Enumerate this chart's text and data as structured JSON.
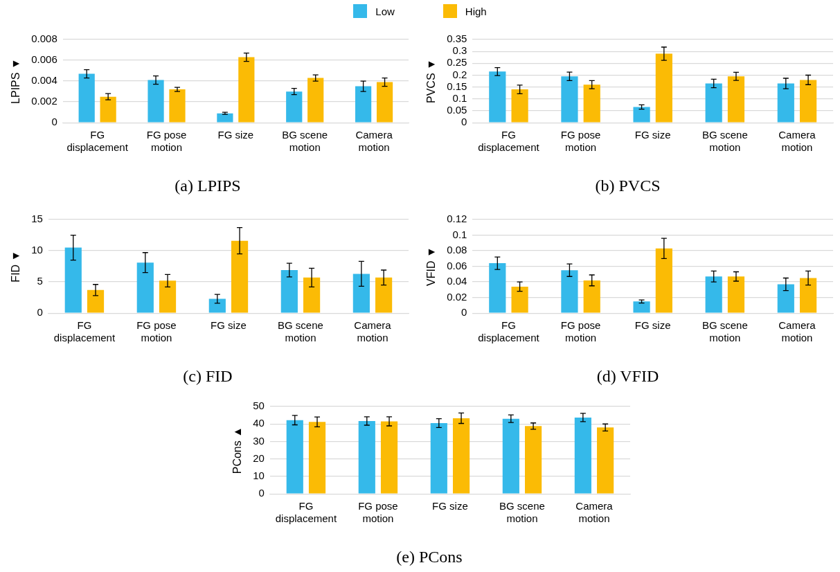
{
  "chart_data": [
    {
      "type": "bar",
      "title": "(a) LPIPS",
      "ylabel": "LPIPS ▼",
      "categories": [
        "FG displacement",
        "FG pose motion",
        "FG size",
        "BG scene motion",
        "Camera motion"
      ],
      "ylim": [
        0,
        0.008
      ],
      "yticks": [
        0,
        0.002,
        0.004,
        0.006,
        0.008
      ],
      "grid": "y",
      "legend": "top",
      "series": [
        {
          "name": "Low",
          "color": "#35b9ea",
          "values": [
            0.0047,
            0.0041,
            0.0009,
            0.003,
            0.0035
          ],
          "errors": [
            0.0004,
            0.0004,
            0.0001,
            0.0003,
            0.0005
          ]
        },
        {
          "name": "High",
          "color": "#fbbb05",
          "values": [
            0.0025,
            0.0032,
            0.0063,
            0.0043,
            0.0039
          ],
          "errors": [
            0.0003,
            0.0002,
            0.0004,
            0.0003,
            0.0004
          ]
        }
      ]
    },
    {
      "type": "bar",
      "title": "(b) PVCS",
      "ylabel": "PVCS ▼",
      "categories": [
        "FG displacement",
        "FG pose motion",
        "FG size",
        "BG scene motion",
        "Camera motion"
      ],
      "ylim": [
        0,
        0.35
      ],
      "yticks": [
        0,
        0.05,
        0.1,
        0.15,
        0.2,
        0.25,
        0.3,
        0.35
      ],
      "grid": "y",
      "series": [
        {
          "color": "#35b9ea",
          "values": [
            0.215,
            0.195,
            0.066,
            0.165,
            0.165
          ],
          "errors": [
            0.017,
            0.018,
            0.009,
            0.018,
            0.022
          ]
        },
        {
          "color": "#fbbb05",
          "values": [
            0.14,
            0.16,
            0.29,
            0.195,
            0.18
          ],
          "errors": [
            0.018,
            0.017,
            0.028,
            0.017,
            0.02
          ]
        }
      ]
    },
    {
      "type": "bar",
      "title": "(c) FID",
      "ylabel": "FID ▼",
      "categories": [
        "FG displacement",
        "FG pose motion",
        "FG size",
        "BG scene motion",
        "Camera motion"
      ],
      "ylim": [
        0,
        15
      ],
      "yticks": [
        0,
        5,
        10,
        15
      ],
      "grid": "y",
      "series": [
        {
          "color": "#35b9ea",
          "values": [
            10.5,
            8.1,
            2.3,
            6.9,
            6.3
          ],
          "errors": [
            2,
            1.6,
            0.7,
            1.1,
            2
          ]
        },
        {
          "color": "#fbbb05",
          "values": [
            3.7,
            5.2,
            11.6,
            5.7,
            5.7
          ],
          "errors": [
            0.9,
            1,
            2.1,
            1.5,
            1.2
          ]
        }
      ]
    },
    {
      "type": "bar",
      "title": "(d) VFID",
      "ylabel": "VFID ▼",
      "categories": [
        "FG displacement",
        "FG pose motion",
        "FG size",
        "BG scene motion",
        "Camera motion"
      ],
      "ylim": [
        0,
        0.12
      ],
      "yticks": [
        0,
        0.02,
        0.04,
        0.06,
        0.08,
        0.1,
        0.12
      ],
      "grid": "y",
      "series": [
        {
          "color": "#35b9ea",
          "values": [
            0.064,
            0.055,
            0.015,
            0.047,
            0.037
          ],
          "errors": [
            0.008,
            0.008,
            0.002,
            0.007,
            0.008
          ]
        },
        {
          "color": "#fbbb05",
          "values": [
            0.034,
            0.042,
            0.083,
            0.047,
            0.045
          ],
          "errors": [
            0.006,
            0.007,
            0.013,
            0.006,
            0.009
          ]
        }
      ]
    },
    {
      "type": "bar",
      "title": "(e) PCons",
      "ylabel": "PCons ▲",
      "categories": [
        "FG displacement",
        "FG pose motion",
        "FG size",
        "BG scene motion",
        "Camera motion"
      ],
      "ylim": [
        0,
        50
      ],
      "yticks": [
        0,
        10,
        20,
        30,
        40,
        50
      ],
      "grid": "y",
      "series": [
        {
          "color": "#35b9ea",
          "values": [
            42.2,
            41.7,
            40.5,
            43,
            43.7
          ],
          "errors": [
            2.7,
            2.4,
            2.5,
            2.2,
            2.4
          ]
        },
        {
          "color": "#fbbb05",
          "values": [
            41.2,
            41.5,
            43.3,
            38.8,
            38
          ],
          "errors": [
            2.8,
            2.6,
            3,
            1.8,
            2
          ]
        }
      ]
    }
  ]
}
